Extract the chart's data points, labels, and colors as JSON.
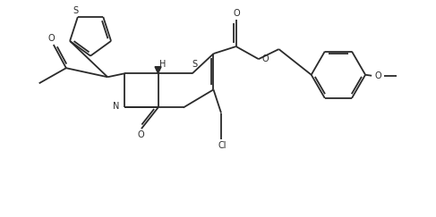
{
  "figsize": [
    4.87,
    2.43
  ],
  "dpi": 100,
  "bg": "#ffffff",
  "lc": "#2a2a2a",
  "lw": 1.3,
  "fs": 6.5,
  "xlim": [
    0,
    9.5
  ],
  "ylim": [
    0,
    4.8
  ]
}
